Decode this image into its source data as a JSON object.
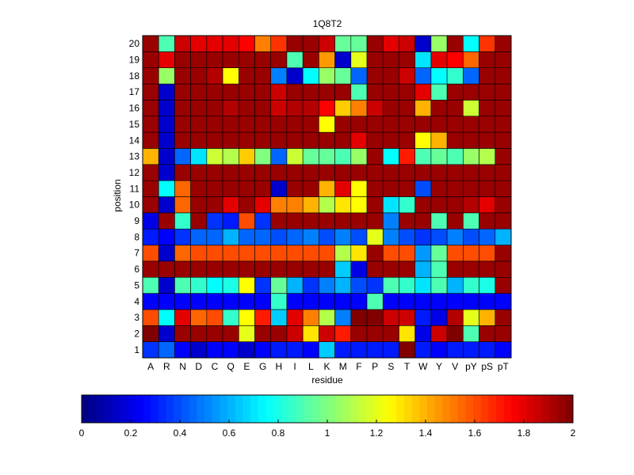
{
  "chart_data": {
    "type": "heatmap",
    "title": "1Q8T2",
    "xlabel": "residue",
    "ylabel": "position",
    "x_categories": [
      "A",
      "R",
      "N",
      "D",
      "C",
      "Q",
      "E",
      "G",
      "H",
      "I",
      "L",
      "K",
      "M",
      "F",
      "P",
      "S",
      "T",
      "W",
      "Y",
      "V",
      "pY",
      "pS",
      "pT"
    ],
    "y_categories": [
      "1",
      "2",
      "3",
      "4",
      "5",
      "6",
      "7",
      "8",
      "9",
      "10",
      "11",
      "12",
      "13",
      "14",
      "15",
      "16",
      "17",
      "18",
      "19",
      "20"
    ],
    "color_range": [
      0,
      2
    ],
    "colormap": "jet",
    "colorbar_ticks": [
      "0",
      "0.2",
      "0.4",
      "0.6",
      "0.8",
      "1",
      "1.2",
      "1.4",
      "1.6",
      "1.8",
      "2"
    ],
    "grid": true,
    "legend_placement": "bottom",
    "matrix": [
      [
        0.35,
        0.45,
        0.25,
        0.15,
        0.25,
        0.25,
        0.15,
        0.25,
        0.3,
        0.3,
        0.25,
        0.65,
        0.3,
        0.3,
        0.3,
        0.3,
        2.0,
        0.3,
        0.25,
        0.3,
        0.3,
        0.3,
        0.25
      ],
      [
        2.0,
        0.15,
        1.95,
        1.95,
        1.95,
        1.95,
        1.2,
        1.95,
        1.95,
        1.85,
        1.3,
        1.85,
        1.7,
        1.95,
        1.95,
        1.95,
        1.3,
        0.2,
        1.85,
        2.0,
        0.9,
        1.95,
        1.95
      ],
      [
        1.6,
        0.75,
        1.8,
        1.55,
        1.6,
        0.85,
        1.25,
        1.7,
        0.65,
        1.8,
        1.5,
        1.1,
        0.5,
        2.0,
        2.0,
        1.85,
        1.85,
        0.3,
        0.2,
        1.9,
        1.2,
        1.4,
        1.95
      ],
      [
        0.25,
        0.25,
        0.25,
        0.25,
        0.25,
        0.25,
        0.25,
        0.25,
        0.85,
        0.25,
        0.25,
        0.25,
        0.25,
        0.25,
        0.9,
        0.25,
        0.25,
        0.25,
        0.25,
        0.25,
        0.25,
        0.25,
        0.25
      ],
      [
        0.9,
        0.15,
        0.9,
        0.85,
        0.75,
        0.8,
        1.25,
        0.35,
        0.95,
        0.6,
        0.35,
        0.5,
        0.6,
        0.4,
        0.35,
        0.9,
        0.85,
        0.7,
        0.9,
        0.6,
        0.85,
        0.8,
        1.95
      ],
      [
        1.95,
        1.95,
        1.95,
        1.95,
        1.95,
        1.95,
        1.95,
        1.95,
        1.95,
        1.95,
        1.95,
        1.95,
        0.65,
        0.2,
        1.95,
        1.95,
        1.95,
        0.6,
        0.9,
        1.95,
        1.95,
        1.95,
        1.95
      ],
      [
        1.6,
        0.15,
        1.55,
        1.6,
        1.6,
        1.6,
        1.6,
        1.6,
        1.6,
        1.6,
        1.6,
        1.6,
        1.1,
        1.3,
        1.95,
        1.6,
        1.6,
        0.55,
        0.95,
        1.6,
        1.6,
        1.6,
        1.95
      ],
      [
        0.3,
        0.25,
        0.35,
        0.45,
        0.45,
        0.6,
        0.45,
        0.45,
        0.4,
        0.45,
        0.5,
        0.4,
        0.5,
        0.4,
        1.2,
        0.5,
        0.4,
        0.35,
        0.4,
        0.5,
        0.4,
        0.45,
        0.6
      ],
      [
        0.2,
        1.95,
        0.85,
        1.95,
        0.35,
        0.3,
        1.6,
        0.35,
        1.95,
        1.95,
        1.95,
        1.95,
        1.95,
        1.95,
        1.95,
        0.5,
        1.95,
        1.95,
        0.9,
        1.95,
        0.9,
        1.95,
        1.95
      ],
      [
        1.95,
        0.15,
        1.55,
        1.95,
        1.95,
        1.8,
        1.95,
        1.8,
        1.5,
        1.5,
        1.4,
        1.1,
        1.3,
        1.25,
        1.95,
        0.7,
        0.85,
        1.95,
        1.95,
        1.95,
        1.9,
        1.8,
        1.95
      ],
      [
        1.95,
        0.75,
        1.55,
        1.95,
        1.95,
        1.95,
        1.95,
        1.95,
        0.15,
        1.95,
        1.95,
        1.4,
        1.8,
        1.25,
        1.95,
        1.95,
        1.95,
        0.4,
        1.95,
        1.95,
        1.95,
        1.95,
        1.95
      ],
      [
        1.95,
        0.15,
        1.95,
        1.95,
        1.95,
        1.95,
        1.95,
        1.95,
        1.95,
        1.95,
        1.95,
        1.95,
        1.95,
        1.95,
        1.95,
        1.95,
        1.95,
        1.95,
        1.95,
        1.95,
        1.95,
        1.95,
        1.95
      ],
      [
        1.4,
        0.15,
        0.45,
        0.7,
        1.15,
        1.1,
        1.35,
        1.0,
        0.45,
        1.15,
        0.95,
        0.95,
        0.9,
        1.05,
        1.95,
        0.75,
        1.7,
        0.9,
        0.95,
        0.9,
        1.05,
        1.1,
        1.95
      ],
      [
        1.95,
        0.15,
        1.95,
        1.95,
        1.95,
        1.95,
        1.95,
        1.95,
        1.95,
        1.95,
        1.95,
        1.95,
        1.95,
        1.8,
        1.95,
        1.95,
        1.95,
        1.25,
        1.4,
        1.95,
        1.95,
        1.95,
        1.95
      ],
      [
        1.95,
        0.15,
        1.95,
        1.95,
        1.95,
        1.95,
        1.95,
        1.95,
        1.95,
        1.95,
        1.95,
        1.25,
        1.95,
        1.95,
        1.95,
        1.95,
        1.95,
        1.95,
        1.95,
        1.95,
        1.95,
        1.95,
        1.95
      ],
      [
        1.95,
        0.15,
        1.95,
        1.95,
        1.95,
        1.9,
        1.95,
        1.95,
        1.85,
        1.9,
        1.9,
        1.75,
        1.35,
        1.5,
        1.85,
        1.95,
        1.95,
        1.4,
        1.95,
        1.95,
        1.15,
        1.95,
        1.95
      ],
      [
        1.95,
        0.15,
        1.95,
        1.95,
        1.95,
        1.95,
        1.95,
        1.95,
        1.85,
        1.95,
        1.95,
        1.95,
        1.95,
        0.9,
        1.95,
        1.95,
        1.95,
        1.8,
        0.9,
        1.95,
        1.95,
        1.95,
        1.95
      ],
      [
        1.95,
        1.05,
        1.95,
        1.95,
        1.9,
        1.25,
        1.95,
        1.95,
        0.5,
        0.15,
        0.75,
        1.05,
        0.95,
        0.45,
        1.95,
        1.95,
        1.85,
        0.45,
        0.75,
        0.85,
        0.45,
        1.95,
        1.95
      ],
      [
        1.95,
        1.8,
        1.95,
        1.95,
        1.95,
        1.95,
        1.95,
        1.95,
        1.95,
        0.9,
        1.95,
        1.45,
        0.15,
        1.2,
        1.95,
        1.95,
        1.95,
        0.7,
        1.8,
        1.75,
        1.55,
        1.95,
        1.95
      ],
      [
        1.95,
        0.9,
        1.85,
        1.8,
        1.8,
        1.8,
        1.75,
        1.5,
        1.65,
        1.95,
        1.95,
        1.85,
        0.95,
        0.95,
        1.95,
        1.8,
        1.85,
        0.15,
        1.05,
        1.95,
        0.75,
        1.65,
        1.95
      ]
    ]
  }
}
